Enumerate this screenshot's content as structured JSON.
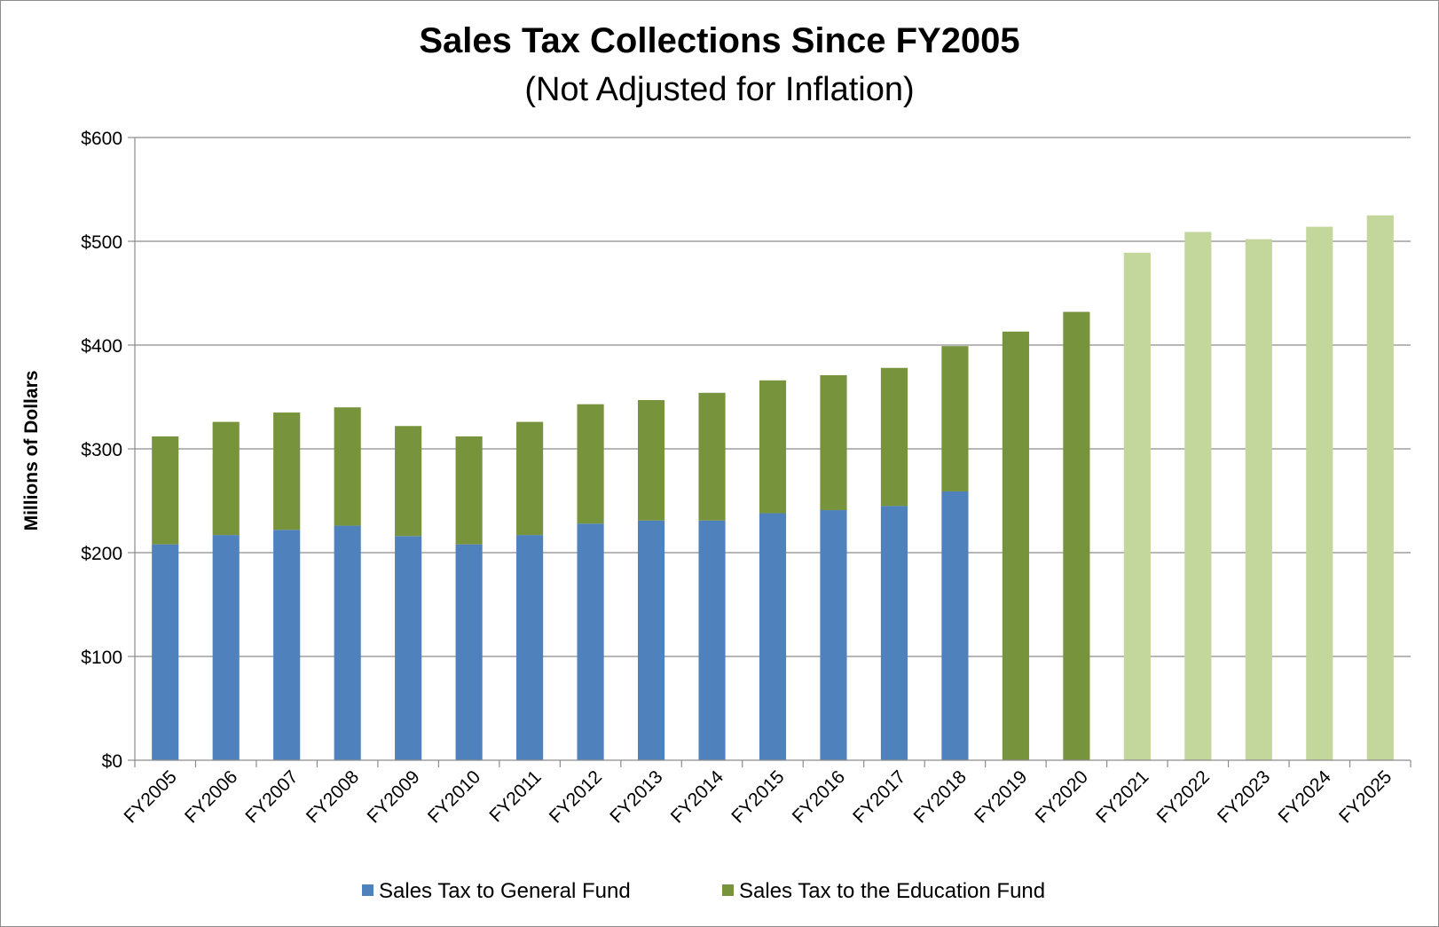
{
  "chart_data": {
    "type": "bar",
    "stacked": true,
    "title": "Sales Tax Collections Since FY2005",
    "subtitle": "(Not Adjusted for Inflation)",
    "xlabel": "",
    "ylabel": "Millions of Dollars",
    "ylim": [
      0,
      600
    ],
    "yticks": [
      0,
      100,
      200,
      300,
      400,
      500,
      600
    ],
    "ytick_labels": [
      "$0",
      "$100",
      "$200",
      "$300",
      "$400",
      "$500",
      "$600"
    ],
    "grid": true,
    "legend_position": "bottom",
    "categories": [
      "FY2005",
      "FY2006",
      "FY2007",
      "FY2008",
      "FY2009",
      "FY2010",
      "FY2011",
      "FY2012",
      "FY2013",
      "FY2014",
      "FY2015",
      "FY2016",
      "FY2017",
      "FY2018",
      "FY2019",
      "FY2020",
      "FY2021",
      "FY2022",
      "FY2023",
      "FY2024",
      "FY2025"
    ],
    "series": [
      {
        "name": "Sales Tax to General Fund",
        "color": "#4f81bd",
        "values": [
          208,
          217,
          222,
          226,
          216,
          208,
          217,
          228,
          231,
          231,
          238,
          241,
          245,
          259,
          0,
          0,
          0,
          0,
          0,
          0,
          0
        ]
      },
      {
        "name": "Sales Tax to the Education Fund",
        "color": "#77933c",
        "projected_color": "#c3d69b",
        "values": [
          104,
          109,
          113,
          114,
          106,
          104,
          109,
          115,
          116,
          123,
          128,
          130,
          133,
          140,
          413,
          432,
          489,
          509,
          502,
          514,
          525
        ],
        "projected_from_index": 16
      }
    ]
  }
}
